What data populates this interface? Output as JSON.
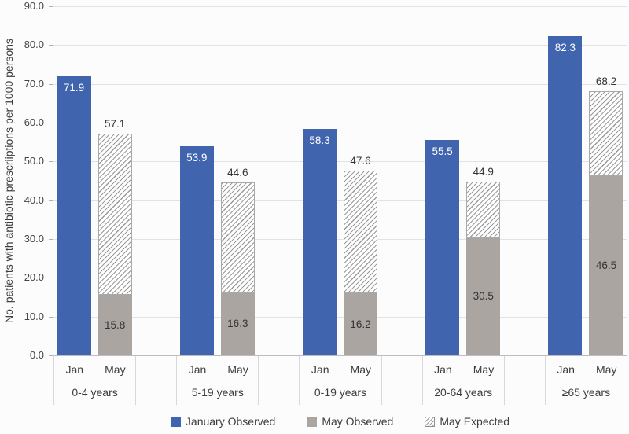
{
  "chart_data": {
    "type": "bar",
    "title": "",
    "categories": [
      "0-4 years",
      "5-19 years",
      "0-19 years",
      "20-64 years",
      "≥65 years"
    ],
    "bar_sublabels": [
      "Jan",
      "May"
    ],
    "xlabel": "",
    "ylabel": "No. patients with antibiotic prescriiptions per 1000 persons",
    "ylim": [
      0,
      90
    ],
    "yticks": [
      0,
      10,
      20,
      30,
      40,
      50,
      60,
      70,
      80,
      90
    ],
    "ytick_decimals": 1,
    "grid": "horizontal",
    "legend_position": "bottom",
    "series": [
      {
        "name": "January Observed",
        "style": "solid",
        "color": "#4065AE",
        "value_label_position": "inside-top",
        "value_label_color": "#ffffff",
        "values": [
          71.9,
          53.9,
          58.3,
          55.5,
          82.3
        ]
      },
      {
        "name": "May Observed",
        "style": "solid",
        "color": "#ABA5A2",
        "value_label_position": "inside-middle",
        "value_label_color": "#333333",
        "values": [
          15.8,
          16.3,
          16.2,
          30.5,
          46.5
        ]
      },
      {
        "name": "May Expected",
        "style": "hatched",
        "hatch_color": "#9a9a9a",
        "border_color": "#a9a9a9",
        "stacked_on": "May Observed",
        "values_are_stacked_totals": true,
        "value_label_position": "above-bar",
        "value_label_color": "#333333",
        "values": [
          57.1,
          44.6,
          47.6,
          44.9,
          68.2
        ]
      }
    ]
  }
}
